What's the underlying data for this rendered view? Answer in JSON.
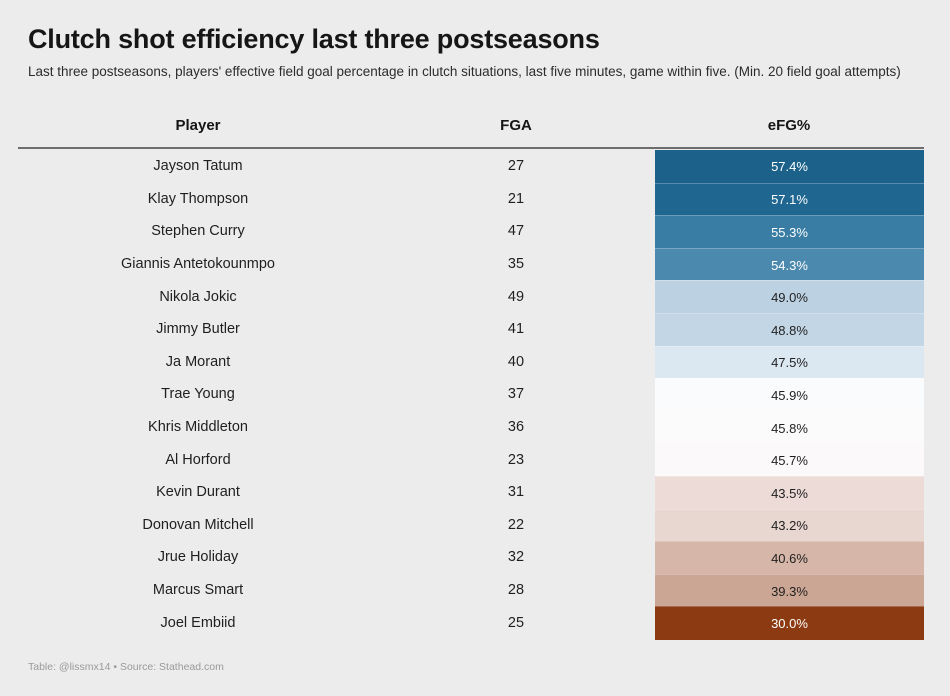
{
  "header": {
    "title": "Clutch shot efficiency last three postseasons",
    "subtitle": "Last three postseasons, players' effective field goal percentage in clutch situations, last five minutes, game within five. (Min. 20 field goal attempts)"
  },
  "footer": {
    "text": "Table: @lissmx14 • Source: Stathead.com"
  },
  "colors": {
    "high": "#1a5f8a",
    "neutral": "#ffffff",
    "low": "#8b3a0f"
  },
  "chart_data": {
    "type": "table",
    "columns": [
      "Player",
      "FGA",
      "eFG%"
    ],
    "rows": [
      {
        "player": "Jayson Tatum",
        "fga": "27",
        "efg": "57.4%",
        "efg_value": 57.4,
        "color": "#1b6189"
      },
      {
        "player": "Klay Thompson",
        "fga": "21",
        "efg": "57.1%",
        "efg_value": 57.1,
        "color": "#1f6690"
      },
      {
        "player": "Stephen Curry",
        "fga": "47",
        "efg": "55.3%",
        "efg_value": 55.3,
        "color": "#3a7da4"
      },
      {
        "player": "Giannis Antetokounmpo",
        "fga": "35",
        "efg": "54.3%",
        "efg_value": 54.3,
        "color": "#4b89ae"
      },
      {
        "player": "Nikola Jokic",
        "fga": "49",
        "efg": "49.0%",
        "efg_value": 49.0,
        "color": "#bcd2e3"
      },
      {
        "player": "Jimmy Butler",
        "fga": "41",
        "efg": "48.8%",
        "efg_value": 48.8,
        "color": "#c2d6e6"
      },
      {
        "player": "Ja Morant",
        "fga": "40",
        "efg": "47.5%",
        "efg_value": 47.5,
        "color": "#dbe7f1"
      },
      {
        "player": "Trae Young",
        "fga": "37",
        "efg": "45.9%",
        "efg_value": 45.9,
        "color": "#fafbfc"
      },
      {
        "player": "Khris Middleton",
        "fga": "36",
        "efg": "45.8%",
        "efg_value": 45.8,
        "color": "#fbfbfc"
      },
      {
        "player": "Al Horford",
        "fga": "23",
        "efg": "45.7%",
        "efg_value": 45.7,
        "color": "#fbf9f9"
      },
      {
        "player": "Kevin Durant",
        "fga": "31",
        "efg": "43.5%",
        "efg_value": 43.5,
        "color": "#ecdbd6"
      },
      {
        "player": "Donovan Mitchell",
        "fga": "22",
        "efg": "43.2%",
        "efg_value": 43.2,
        "color": "#e8d6d1"
      },
      {
        "player": "Jrue Holiday",
        "fga": "32",
        "efg": "40.6%",
        "efg_value": 40.6,
        "color": "#d6b6a8"
      },
      {
        "player": "Marcus Smart",
        "fga": "28",
        "efg": "39.3%",
        "efg_value": 39.3,
        "color": "#cca694"
      },
      {
        "player": "Joel Embiid",
        "fga": "25",
        "efg": "30.0%",
        "efg_value": 30.0,
        "color": "#8b3a12"
      }
    ]
  }
}
